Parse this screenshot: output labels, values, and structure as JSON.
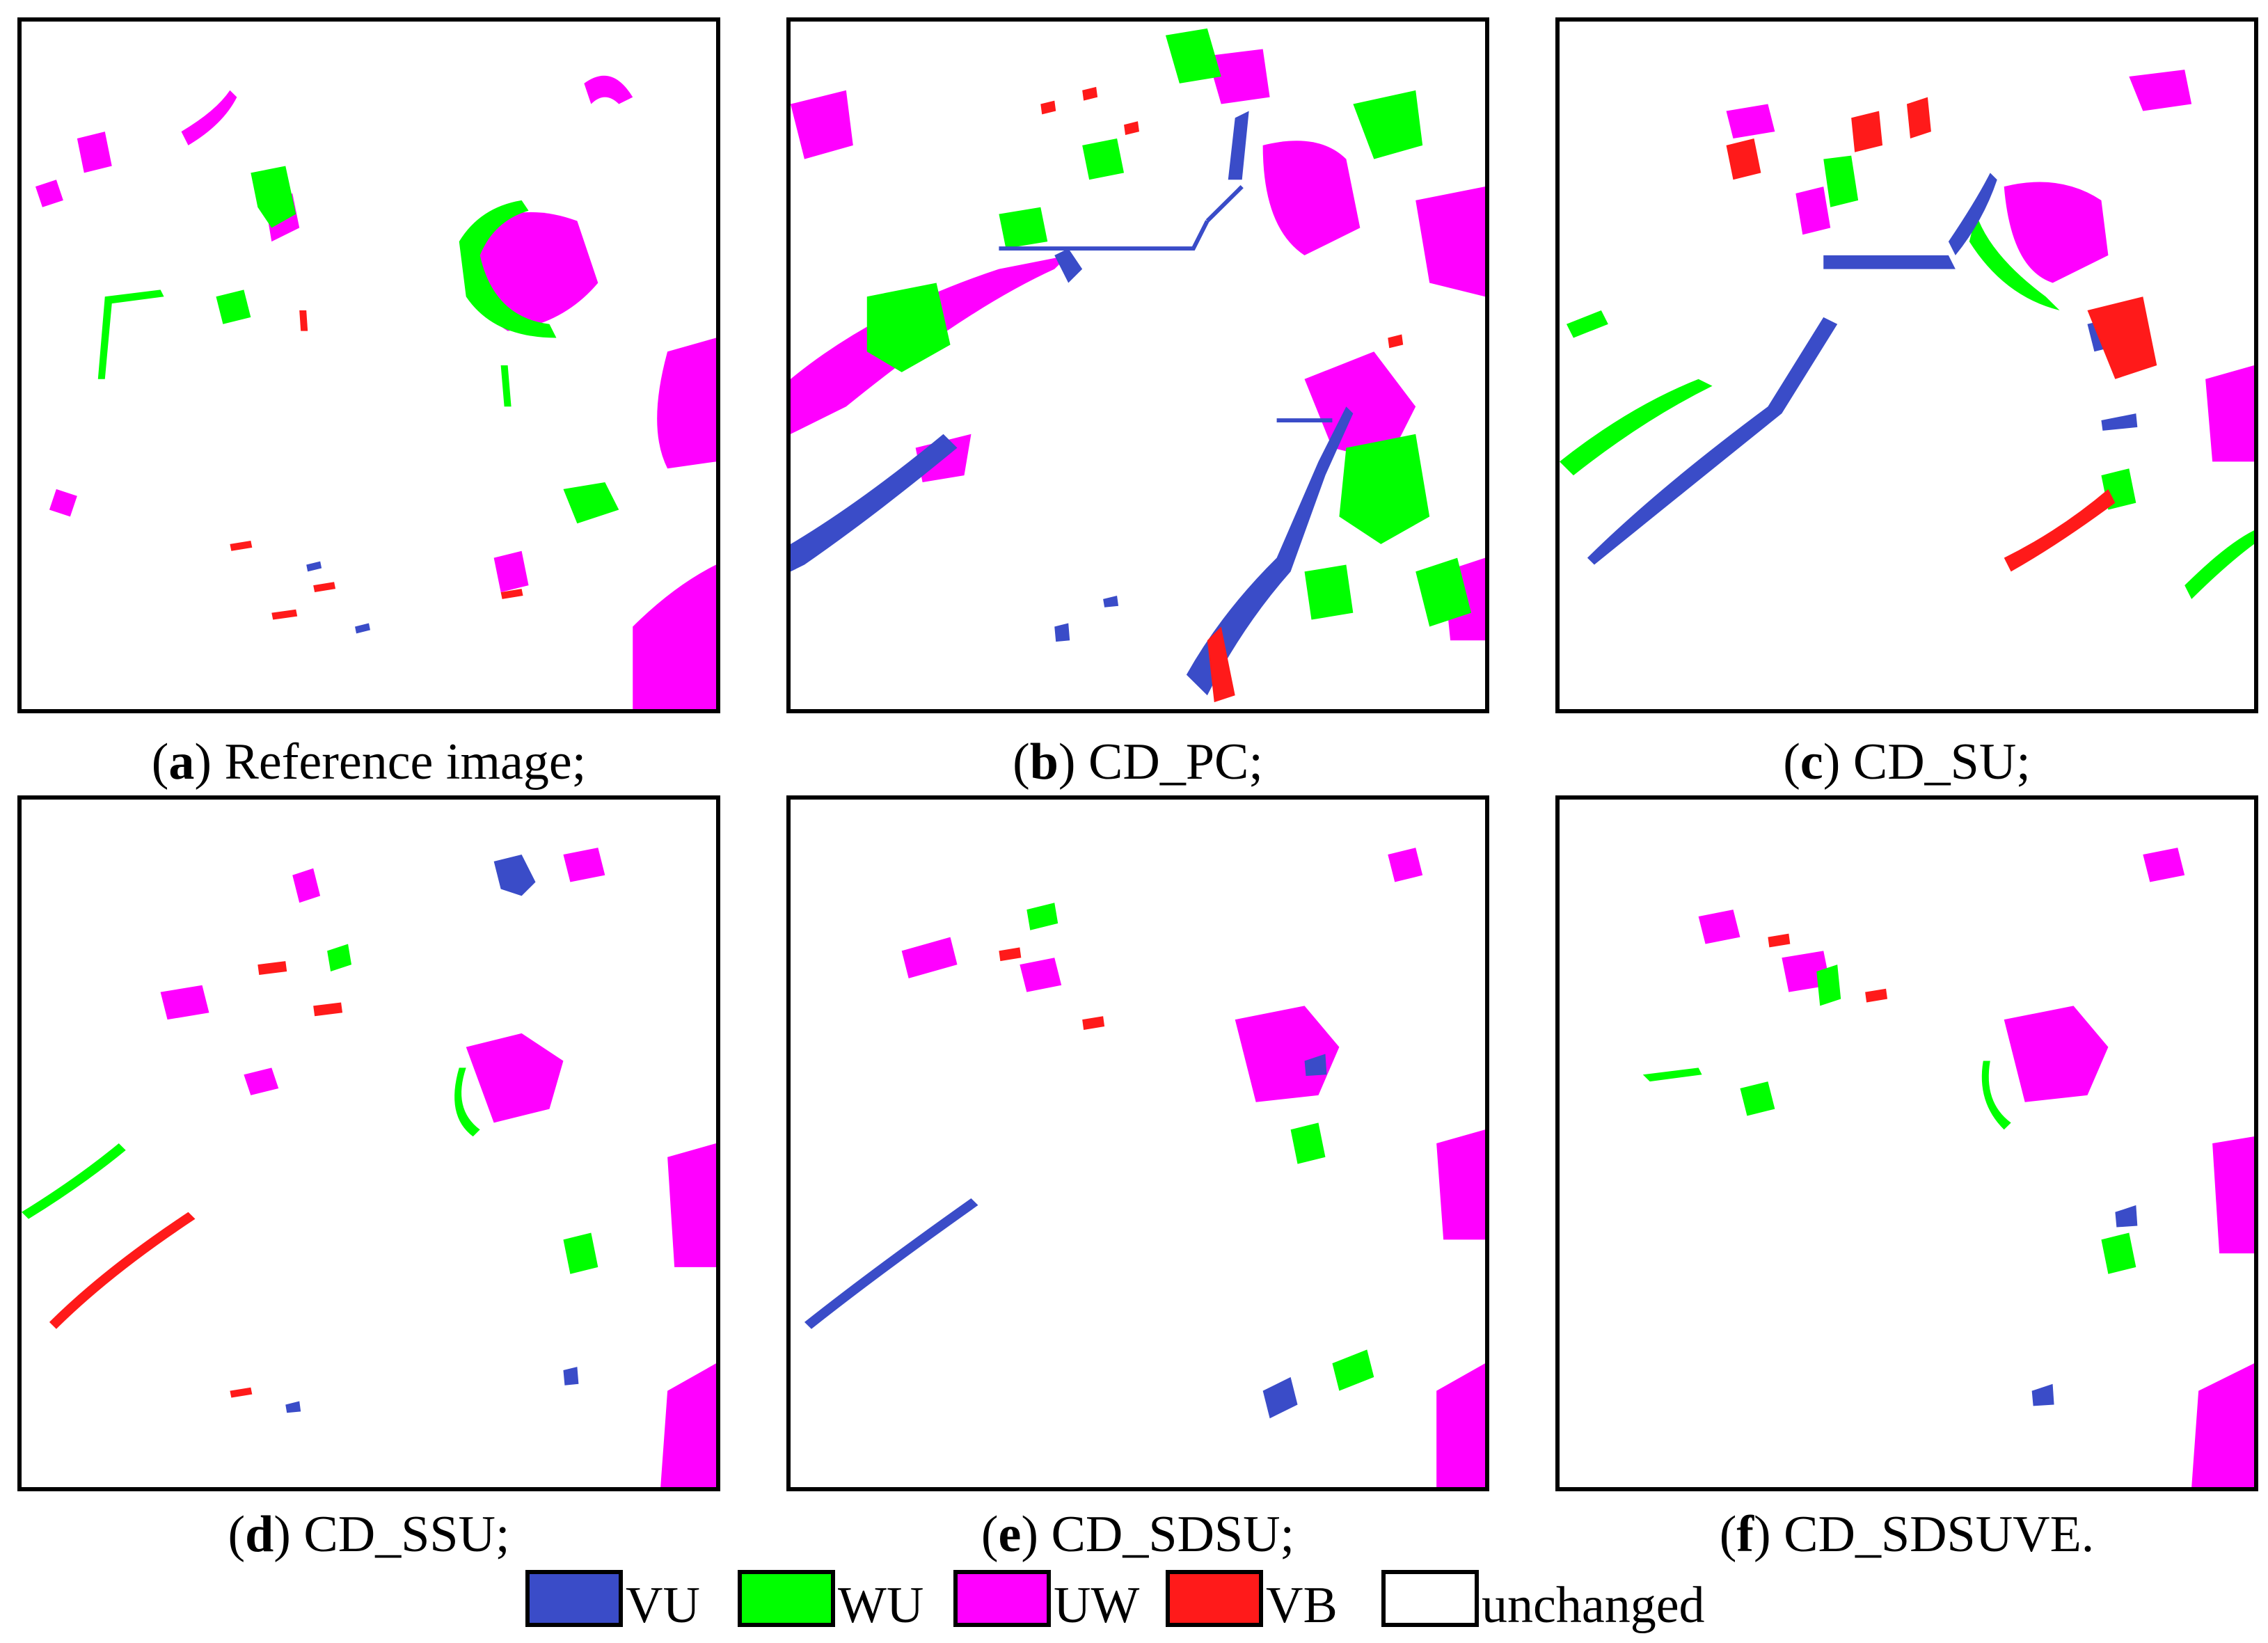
{
  "figure": {
    "panels": [
      {
        "id": "a",
        "letter": "a",
        "title": "Reference image;"
      },
      {
        "id": "b",
        "letter": "b",
        "title": "CD_PC;"
      },
      {
        "id": "c",
        "letter": "c",
        "title": "CD_SU;"
      },
      {
        "id": "d",
        "letter": "d",
        "title": "CD_SSU;"
      },
      {
        "id": "e",
        "letter": "e",
        "title": "CD_SDSU;"
      },
      {
        "id": "f",
        "letter": "f",
        "title": "CD_SDSUVE."
      }
    ],
    "legend": [
      {
        "label": "VU",
        "color": "#3a4cc8"
      },
      {
        "label": "WU",
        "color": "#00ff00"
      },
      {
        "label": "UW",
        "color": "#ff00ff"
      },
      {
        "label": "VB",
        "color": "#ff1a1a"
      },
      {
        "label": "unchanged",
        "color": "#ffffff"
      }
    ]
  }
}
